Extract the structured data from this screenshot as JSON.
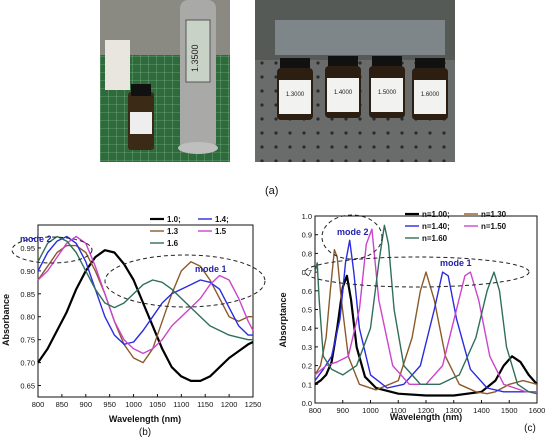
{
  "photos": {
    "left": {
      "vial_label": "",
      "meter_reading": "1.3500"
    },
    "right": {
      "vial_labels": [
        "1.3000",
        "1.4000",
        "1.5000",
        "1.6000"
      ]
    }
  },
  "panel_labels": {
    "a": "(a)",
    "b": "(b)",
    "c": "(c)"
  },
  "chart_data": [
    {
      "type": "line",
      "panel": "(b)",
      "xlabel": "Wavelength (nm)",
      "ylabel": "Absorbance",
      "xlim": [
        800,
        1250
      ],
      "ylim": [
        0.625,
        1.0
      ],
      "xticks": [
        800,
        850,
        900,
        950,
        1000,
        1050,
        1100,
        1150,
        1200,
        1250
      ],
      "yticks": [
        0.65,
        0.7,
        0.75,
        0.8,
        0.85,
        0.9,
        0.95
      ],
      "grid": false,
      "legend": "top-right",
      "legend_labels": [
        "1.0;",
        "1.3",
        "1.4;",
        "1.5",
        "1.6"
      ],
      "annotations": [
        "mode 2",
        "mode 1"
      ],
      "series": [
        {
          "name": "1.0;",
          "color": "#000000",
          "x": [
            800,
            820,
            840,
            860,
            880,
            900,
            920,
            940,
            960,
            980,
            1000,
            1020,
            1040,
            1060,
            1080,
            1100,
            1120,
            1140,
            1160,
            1180,
            1200,
            1220,
            1240,
            1250
          ],
          "y": [
            0.7,
            0.73,
            0.77,
            0.81,
            0.86,
            0.9,
            0.93,
            0.945,
            0.94,
            0.915,
            0.88,
            0.83,
            0.78,
            0.73,
            0.69,
            0.67,
            0.66,
            0.66,
            0.67,
            0.69,
            0.71,
            0.725,
            0.74,
            0.745
          ]
        },
        {
          "name": "1.3",
          "color": "#8B5A2B",
          "x": [
            800,
            820,
            840,
            860,
            880,
            900,
            920,
            940,
            960,
            980,
            1000,
            1020,
            1040,
            1060,
            1080,
            1100,
            1120,
            1140,
            1160,
            1180,
            1200,
            1220,
            1240,
            1250
          ],
          "y": [
            0.88,
            0.91,
            0.94,
            0.955,
            0.955,
            0.94,
            0.9,
            0.85,
            0.79,
            0.74,
            0.71,
            0.7,
            0.73,
            0.79,
            0.85,
            0.9,
            0.92,
            0.91,
            0.88,
            0.84,
            0.8,
            0.79,
            0.8,
            0.8
          ]
        },
        {
          "name": "1.4;",
          "color": "#2B2BE0",
          "x": [
            800,
            820,
            840,
            860,
            880,
            900,
            920,
            940,
            960,
            980,
            1000,
            1020,
            1040,
            1060,
            1080,
            1100,
            1120,
            1140,
            1160,
            1180,
            1200,
            1220,
            1240,
            1250
          ],
          "y": [
            0.9,
            0.94,
            0.965,
            0.975,
            0.96,
            0.92,
            0.86,
            0.8,
            0.76,
            0.74,
            0.745,
            0.77,
            0.8,
            0.83,
            0.85,
            0.86,
            0.87,
            0.88,
            0.875,
            0.86,
            0.82,
            0.78,
            0.76,
            0.76
          ]
        },
        {
          "name": "1.5",
          "color": "#CC44CC",
          "x": [
            800,
            820,
            840,
            860,
            880,
            900,
            920,
            940,
            960,
            980,
            1000,
            1020,
            1040,
            1060,
            1080,
            1100,
            1120,
            1140,
            1160,
            1180,
            1200,
            1220,
            1240,
            1250
          ],
          "y": [
            0.88,
            0.9,
            0.93,
            0.96,
            0.975,
            0.96,
            0.91,
            0.85,
            0.79,
            0.75,
            0.73,
            0.72,
            0.73,
            0.75,
            0.78,
            0.8,
            0.82,
            0.84,
            0.87,
            0.89,
            0.88,
            0.84,
            0.79,
            0.77
          ]
        },
        {
          "name": "1.6",
          "color": "#2F6F5A",
          "x": [
            800,
            820,
            840,
            860,
            880,
            900,
            920,
            940,
            960,
            980,
            1000,
            1020,
            1040,
            1060,
            1080,
            1100,
            1120,
            1140,
            1160,
            1180,
            1200,
            1220,
            1240,
            1250
          ],
          "y": [
            0.92,
            0.96,
            0.975,
            0.965,
            0.94,
            0.9,
            0.86,
            0.83,
            0.82,
            0.83,
            0.85,
            0.87,
            0.88,
            0.875,
            0.86,
            0.84,
            0.82,
            0.8,
            0.78,
            0.77,
            0.76,
            0.755,
            0.75,
            0.75
          ]
        }
      ]
    },
    {
      "type": "line",
      "panel": "(c)",
      "xlabel": "Wavelength (nm)",
      "ylabel": "Absorptance",
      "xlim": [
        800,
        1600
      ],
      "ylim": [
        0.0,
        1.0
      ],
      "xticks": [
        800,
        900,
        1000,
        1100,
        1200,
        1300,
        1400,
        1500,
        1600
      ],
      "yticks": [
        0.0,
        0.1,
        0.2,
        0.3,
        0.4,
        0.5,
        0.6,
        0.7,
        0.8,
        0.9,
        1.0
      ],
      "grid": false,
      "legend": "top-right",
      "legend_labels": [
        "n=1.00;",
        "n=1.30",
        "n=1.40;",
        "n=1.50",
        "n=1.60"
      ],
      "annotations": [
        "mode 2",
        "mode 1"
      ],
      "series": [
        {
          "name": "n=1.00;",
          "color": "#000000",
          "x": [
            800,
            820,
            840,
            860,
            880,
            900,
            915,
            930,
            950,
            980,
            1020,
            1100,
            1200,
            1300,
            1400,
            1450,
            1480,
            1510,
            1540,
            1570,
            1600
          ],
          "y": [
            0.1,
            0.12,
            0.15,
            0.22,
            0.4,
            0.62,
            0.68,
            0.55,
            0.3,
            0.14,
            0.08,
            0.05,
            0.04,
            0.04,
            0.06,
            0.12,
            0.2,
            0.25,
            0.22,
            0.15,
            0.1
          ]
        },
        {
          "name": "n=1.30",
          "color": "#8B5A2B",
          "x": [
            800,
            820,
            840,
            855,
            870,
            880,
            895,
            920,
            960,
            1020,
            1100,
            1150,
            1180,
            1200,
            1230,
            1270,
            1320,
            1380,
            1420,
            1450,
            1500,
            1550,
            1600
          ],
          "y": [
            0.15,
            0.2,
            0.35,
            0.6,
            0.82,
            0.78,
            0.55,
            0.25,
            0.1,
            0.07,
            0.12,
            0.35,
            0.6,
            0.7,
            0.55,
            0.25,
            0.1,
            0.06,
            0.05,
            0.06,
            0.1,
            0.12,
            0.1
          ]
        },
        {
          "name": "n=1.40;",
          "color": "#2B2BE0",
          "x": [
            800,
            830,
            860,
            890,
            910,
            925,
            940,
            960,
            1000,
            1060,
            1120,
            1180,
            1230,
            1260,
            1280,
            1310,
            1360,
            1420,
            1480,
            1540,
            1600
          ],
          "y": [
            0.12,
            0.18,
            0.25,
            0.45,
            0.75,
            0.87,
            0.7,
            0.4,
            0.15,
            0.08,
            0.1,
            0.2,
            0.5,
            0.7,
            0.68,
            0.45,
            0.18,
            0.08,
            0.06,
            0.06,
            0.06
          ]
        },
        {
          "name": "n=1.50",
          "color": "#CC44CC",
          "x": [
            800,
            840,
            880,
            920,
            960,
            985,
            1005,
            1030,
            1080,
            1140,
            1200,
            1260,
            1310,
            1340,
            1360,
            1390,
            1430,
            1480,
            1520,
            1560,
            1600
          ],
          "y": [
            0.15,
            0.2,
            0.22,
            0.25,
            0.5,
            0.85,
            0.93,
            0.55,
            0.2,
            0.1,
            0.1,
            0.2,
            0.5,
            0.68,
            0.7,
            0.55,
            0.25,
            0.1,
            0.08,
            0.06,
            0.06
          ]
        },
        {
          "name": "n=1.60",
          "color": "#2F6F5A",
          "x": [
            800,
            808,
            815,
            830,
            860,
            900,
            950,
            1000,
            1030,
            1050,
            1065,
            1085,
            1120,
            1180,
            1250,
            1320,
            1380,
            1420,
            1445,
            1465,
            1490,
            1530,
            1570,
            1600
          ],
          "y": [
            0.7,
            0.75,
            0.55,
            0.25,
            0.18,
            0.15,
            0.2,
            0.4,
            0.75,
            0.95,
            0.85,
            0.5,
            0.2,
            0.1,
            0.1,
            0.15,
            0.35,
            0.6,
            0.7,
            0.6,
            0.3,
            0.1,
            0.06,
            0.05
          ]
        }
      ]
    }
  ],
  "colors": {
    "black": "#000000",
    "brown": "#8B5A2B",
    "blue": "#2B2BE0",
    "magenta": "#CC44CC",
    "green": "#2F6F5A",
    "mode_label": "#2222AA"
  }
}
